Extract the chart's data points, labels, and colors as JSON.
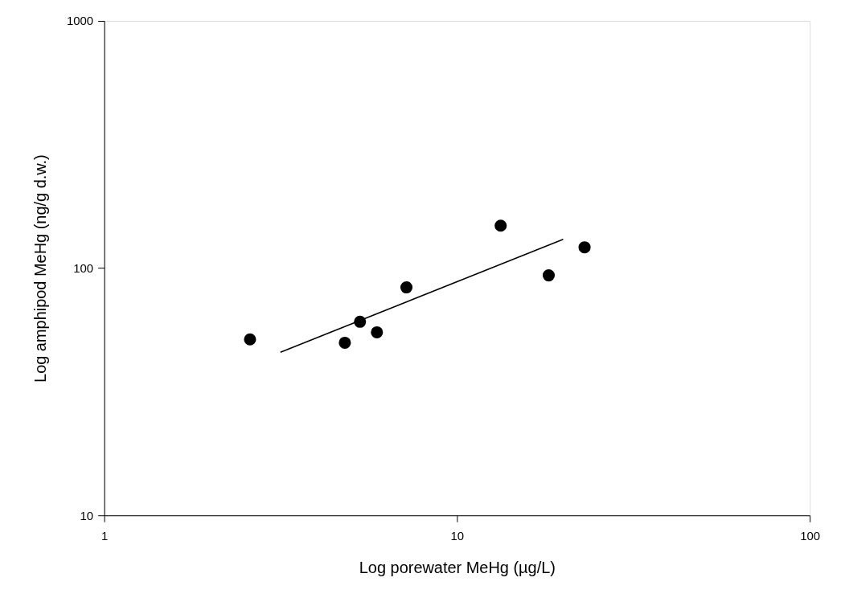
{
  "chart_data": {
    "type": "scatter",
    "xlabel": "Log porewater MeHg (µg/L)",
    "ylabel": "Log amphipod MeHg (ng/g d.w.)",
    "log": "xy",
    "xlim": [
      1,
      100
    ],
    "xticks": [
      1,
      10,
      100
    ],
    "ylim": [
      10,
      1000
    ],
    "yticks": [
      10,
      100,
      1000
    ],
    "grid": false,
    "legend": false,
    "series": [
      {
        "type": "scatter",
        "color": "#000000",
        "marker": "circle",
        "x": [
          2.59,
          4.81,
          5.31,
          5.93,
          7.19,
          13.3,
          18.2,
          23.0
        ],
        "values": [
          51.5,
          49.9,
          60.7,
          55.0,
          83.6,
          148.5,
          93.5,
          121.4
        ]
      },
      {
        "type": "line",
        "color": "#000000",
        "marker": "none",
        "line_style": "solid",
        "x": [
          3.16,
          20.0
        ],
        "values": [
          45.7,
          130.8
        ]
      }
    ]
  }
}
